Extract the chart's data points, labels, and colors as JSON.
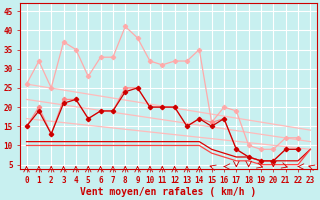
{
  "background_color": "#c8f0f0",
  "grid_color": "#ffffff",
  "xlabel": "Vent moyen/en rafales ( km/h )",
  "xlabel_color": "#cc0000",
  "xlabel_fontsize": 7,
  "xtick_labels": [
    "0",
    "1",
    "2",
    "3",
    "4",
    "5",
    "6",
    "7",
    "8",
    "9",
    "10",
    "11",
    "12",
    "13",
    "14",
    "15",
    "16",
    "17",
    "18",
    "19",
    "20",
    "21",
    "22",
    "23"
  ],
  "ytick_labels": [
    "5",
    "10",
    "15",
    "20",
    "25",
    "30",
    "35",
    "40",
    "45"
  ],
  "ylim": [
    4,
    47
  ],
  "xlim": [
    -0.5,
    23.5
  ],
  "line1_x": [
    0,
    1,
    2,
    3,
    4,
    5,
    6,
    7,
    8,
    9,
    10,
    11,
    12,
    13,
    14,
    15,
    16,
    17,
    18,
    19,
    20,
    21,
    22,
    23
  ],
  "line1_y": [
    26,
    32,
    25,
    37,
    35,
    28,
    33,
    33,
    41,
    38,
    32,
    31,
    32,
    32,
    35,
    16,
    20,
    19,
    10,
    9,
    9,
    12,
    12,
    null
  ],
  "line1_color": "#ffaaaa",
  "line1_marker": "D",
  "line2_x": [
    0,
    1,
    2,
    3,
    4,
    5,
    6,
    7,
    8,
    9,
    10,
    11,
    12,
    13,
    14,
    15,
    16,
    17,
    18,
    19,
    20,
    21,
    22,
    23
  ],
  "line2_y": [
    15,
    20,
    13,
    22,
    22,
    17,
    19,
    19,
    25,
    25,
    20,
    20,
    20,
    15,
    17,
    16,
    17,
    9,
    7,
    6,
    6,
    9,
    9,
    null
  ],
  "line2_color": "#ff8888",
  "line2_marker": "D",
  "trend1_x": [
    0,
    23
  ],
  "trend1_y": [
    26,
    14
  ],
  "trend1_color": "#ffbbbb",
  "trend2_x": [
    0,
    23
  ],
  "trend2_y": [
    22,
    11
  ],
  "trend2_color": "#ffbbbb",
  "trend3_x": [
    0,
    23
  ],
  "trend3_y": [
    17,
    9
  ],
  "trend3_color": "#ffbbbb",
  "line3_x": [
    0,
    1,
    2,
    3,
    4,
    5,
    6,
    7,
    8,
    9,
    10,
    11,
    12,
    13,
    14,
    15,
    16,
    17,
    18,
    19,
    20,
    21,
    22,
    23
  ],
  "line3_y": [
    15,
    19,
    13,
    21,
    22,
    17,
    19,
    19,
    24,
    25,
    20,
    20,
    20,
    15,
    17,
    15,
    17,
    9,
    7,
    6,
    6,
    9,
    9,
    null
  ],
  "line3_color": "#cc0000",
  "line3_marker": "D",
  "line4_x": [
    0,
    1,
    2,
    3,
    4,
    5,
    6,
    7,
    8,
    9,
    10,
    11,
    12,
    13,
    14,
    15,
    16,
    17,
    18,
    19,
    20,
    21,
    22,
    23
  ],
  "line4_y": [
    11,
    11,
    11,
    11,
    11,
    11,
    11,
    11,
    11,
    11,
    11,
    11,
    11,
    11,
    11,
    9,
    8,
    7,
    7,
    6,
    6,
    6,
    6,
    9
  ],
  "line4_color": "#dd0000",
  "line5_x": [
    0,
    1,
    2,
    3,
    4,
    5,
    6,
    7,
    8,
    9,
    10,
    11,
    12,
    13,
    14,
    15,
    16,
    17,
    18,
    19,
    20,
    21,
    22,
    23
  ],
  "line5_y": [
    10,
    10,
    10,
    10,
    10,
    10,
    10,
    10,
    10,
    10,
    10,
    10,
    10,
    10,
    10,
    8,
    7,
    6,
    6,
    5,
    5,
    5,
    5,
    9
  ],
  "line5_color": "#ff4444",
  "tick_color": "#cc0000",
  "tick_fontsize": 5.5,
  "axis_color": "#cc0000"
}
